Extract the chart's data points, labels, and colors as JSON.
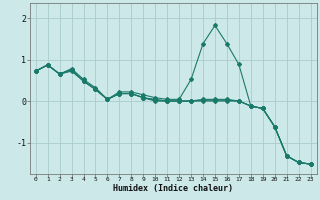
{
  "xlabel": "Humidex (Indice chaleur)",
  "background_color": "#cce8e8",
  "grid_color": "#aacccc",
  "line_color": "#1a7a6a",
  "spine_color": "#666666",
  "xlim": [
    -0.5,
    23.5
  ],
  "ylim": [
    -1.75,
    2.35
  ],
  "yticks": [
    -1,
    0,
    1,
    2
  ],
  "xticks": [
    0,
    1,
    2,
    3,
    4,
    5,
    6,
    7,
    8,
    9,
    10,
    11,
    12,
    13,
    14,
    15,
    16,
    17,
    18,
    19,
    20,
    21,
    22,
    23
  ],
  "series": [
    {
      "x": [
        0,
        1,
        2,
        3,
        4,
        5,
        6,
        7,
        8,
        9,
        10,
        11,
        12,
        13,
        14,
        15,
        16,
        17,
        18,
        19,
        20,
        21,
        22,
        23
      ],
      "y": [
        0.72,
        0.87,
        0.65,
        0.78,
        0.52,
        0.32,
        0.04,
        0.22,
        0.22,
        0.15,
        0.08,
        0.04,
        0.04,
        0.52,
        1.38,
        1.82,
        1.38,
        0.88,
        -0.12,
        -0.18,
        -0.62,
        -1.32,
        -1.48,
        -1.52
      ]
    },
    {
      "x": [
        0,
        1,
        2,
        3,
        4,
        5,
        6,
        7,
        8,
        9,
        10,
        11,
        12,
        13,
        14,
        15,
        16,
        17,
        18,
        19,
        20,
        21,
        22,
        23
      ],
      "y": [
        0.72,
        0.87,
        0.65,
        0.72,
        0.48,
        0.28,
        0.04,
        0.18,
        0.18,
        0.08,
        0.04,
        0.0,
        0.0,
        0.0,
        0.04,
        0.04,
        0.04,
        0.0,
        -0.12,
        -0.18,
        -0.62,
        -1.32,
        -1.48,
        -1.52
      ]
    },
    {
      "x": [
        0,
        1,
        2,
        3,
        4,
        5,
        6,
        7,
        8,
        9,
        10,
        11,
        12,
        13,
        14,
        15,
        16,
        17,
        18,
        19,
        20,
        21,
        22,
        23
      ],
      "y": [
        0.72,
        0.87,
        0.65,
        0.75,
        0.48,
        0.28,
        0.04,
        0.18,
        0.18,
        0.08,
        0.02,
        0.0,
        0.0,
        0.0,
        0.02,
        0.02,
        0.02,
        0.0,
        -0.12,
        -0.18,
        -0.62,
        -1.32,
        -1.48,
        -1.52
      ]
    },
    {
      "x": [
        0,
        1,
        2,
        3,
        4,
        5,
        6,
        7,
        8,
        9,
        10,
        11,
        12,
        13,
        14,
        15,
        16,
        17,
        18,
        19,
        20,
        21,
        22,
        23
      ],
      "y": [
        0.72,
        0.87,
        0.65,
        0.75,
        0.48,
        0.28,
        0.04,
        0.18,
        0.18,
        0.08,
        0.0,
        0.0,
        0.0,
        0.0,
        0.0,
        0.0,
        0.0,
        0.0,
        -0.12,
        -0.18,
        -0.62,
        -1.32,
        -1.48,
        -1.52
      ]
    }
  ]
}
